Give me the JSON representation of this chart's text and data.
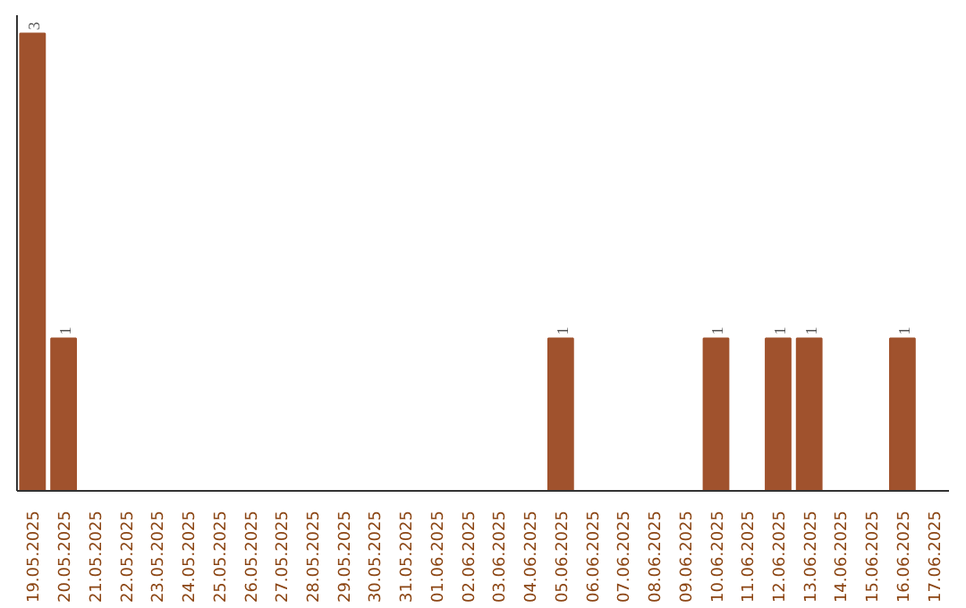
{
  "chart_data": {
    "type": "bar",
    "categories": [
      "19.05.2025",
      "20.05.2025",
      "21.05.2025",
      "22.05.2025",
      "23.05.2025",
      "24.05.2025",
      "25.05.2025",
      "26.05.2025",
      "27.05.2025",
      "28.05.2025",
      "29.05.2025",
      "30.05.2025",
      "31.05.2025",
      "01.06.2025",
      "02.06.2025",
      "03.06.2025",
      "04.06.2025",
      "05.06.2025",
      "06.06.2025",
      "07.06.2025",
      "08.06.2025",
      "09.06.2025",
      "10.06.2025",
      "11.06.2025",
      "12.06.2025",
      "13.06.2025",
      "14.06.2025",
      "15.06.2025",
      "16.06.2025",
      "17.06.2025"
    ],
    "values": [
      3,
      1,
      0,
      0,
      0,
      0,
      0,
      0,
      0,
      0,
      0,
      0,
      0,
      0,
      0,
      0,
      0,
      1,
      0,
      0,
      0,
      0,
      1,
      0,
      1,
      1,
      0,
      0,
      1,
      0
    ],
    "value_labels": [
      "3",
      "1",
      null,
      null,
      null,
      null,
      null,
      null,
      null,
      null,
      null,
      null,
      null,
      null,
      null,
      null,
      null,
      "1",
      null,
      null,
      null,
      null,
      "1",
      null,
      "1",
      "1",
      null,
      null,
      "1",
      null
    ],
    "color": "#a0522d",
    "grid": false
  }
}
